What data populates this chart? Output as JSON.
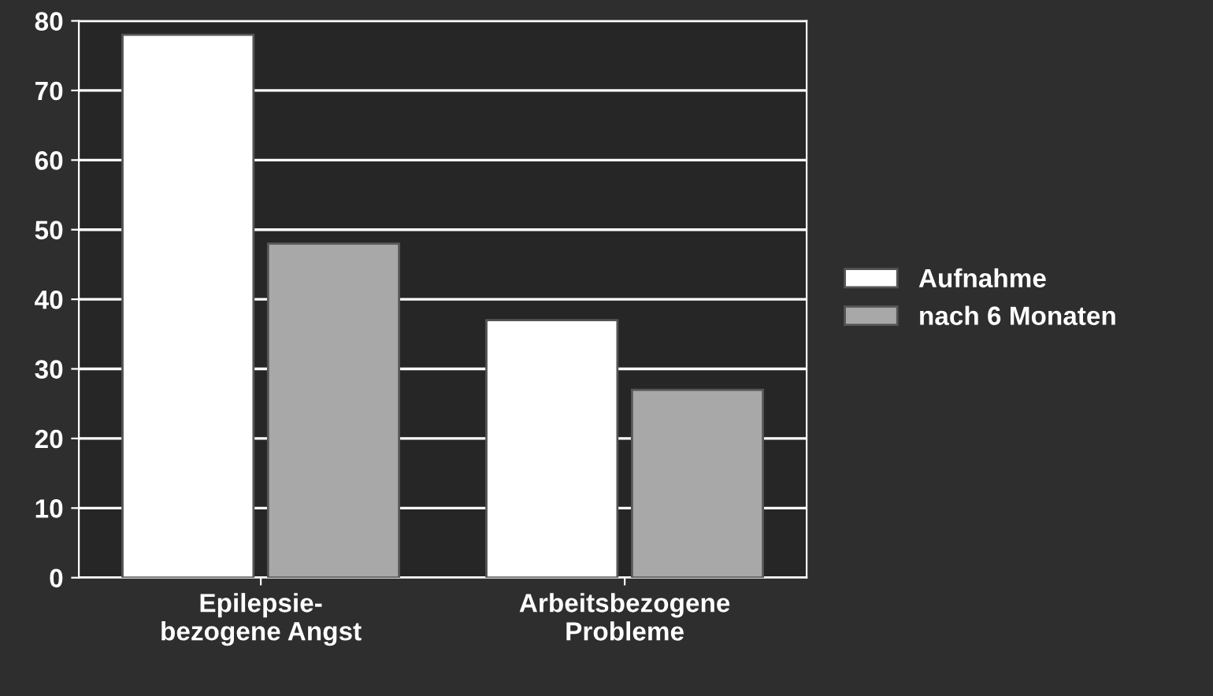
{
  "chart_data": {
    "type": "bar",
    "categories": [
      "Epilepsie-\nbezogene Angst",
      "Arbeitsbezogene\nProbleme"
    ],
    "series": [
      {
        "name": "Aufnahme",
        "color": "#ffffff",
        "values": [
          78,
          37
        ]
      },
      {
        "name": "nach 6 Monaten",
        "color": "#a8a8a8",
        "values": [
          48,
          27
        ]
      }
    ],
    "ylim": [
      0,
      80
    ],
    "yticks": [
      0,
      10,
      20,
      30,
      40,
      50,
      60,
      70,
      80
    ],
    "grid": "y",
    "legend": "right"
  }
}
